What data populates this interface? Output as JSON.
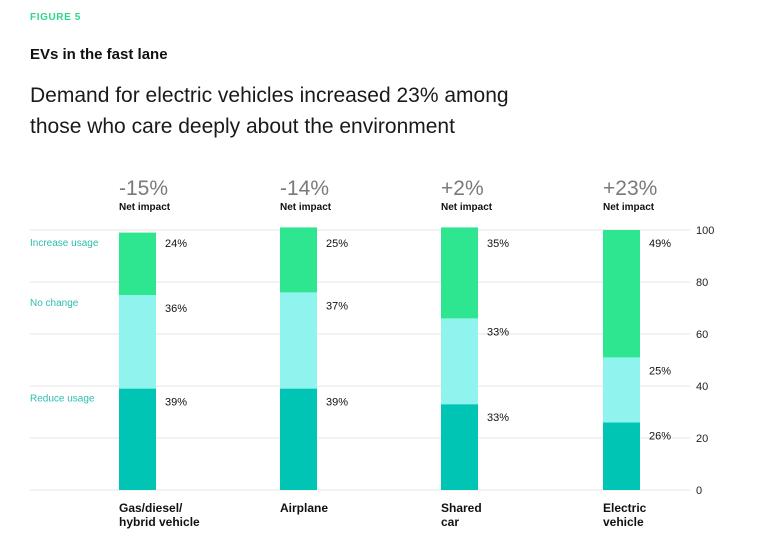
{
  "figure_label": "FIGURE 5",
  "chart_title": "EVs in the fast lane",
  "headline": "Demand for electric vehicles increased 23% among those who care deeply about the environment",
  "colors": {
    "increase": "#2ee68f",
    "no_change": "#8ff3ee",
    "reduce": "#00c4b4",
    "label_increase": "#2bd98a",
    "label_other": "#2bbfae",
    "grid": "#e6e6e6"
  },
  "chart_data": {
    "type": "bar",
    "stacked": true,
    "title": "EVs in the fast lane",
    "categories": [
      {
        "lines": [
          "Gas/diesel/",
          "hybrid vehicle"
        ],
        "net_impact": "-15%"
      },
      {
        "lines": [
          "Airplane"
        ],
        "net_impact": "-14%"
      },
      {
        "lines": [
          "Shared",
          "car"
        ],
        "net_impact": "+2%"
      },
      {
        "lines": [
          "Electric",
          "vehicle"
        ],
        "net_impact": "+23%"
      }
    ],
    "net_impact_caption": "Net impact",
    "series": [
      {
        "name": "Reduce usage",
        "key": "reduce",
        "values": [
          39,
          39,
          33,
          26
        ]
      },
      {
        "name": "No change",
        "key": "no_change",
        "values": [
          36,
          37,
          33,
          25
        ]
      },
      {
        "name": "Increase usage",
        "key": "increase",
        "values": [
          24,
          25,
          35,
          49
        ]
      }
    ],
    "value_labels": {
      "reduce": [
        "39%",
        "39%",
        "33%",
        "26%"
      ],
      "no_change": [
        "36%",
        "37%",
        "33%",
        "25%"
      ],
      "increase": [
        "24%",
        "25%",
        "35%",
        "49%"
      ]
    },
    "ylim": [
      0,
      100
    ],
    "yticks": [
      0,
      20,
      40,
      60,
      80,
      100
    ],
    "grid": true
  }
}
